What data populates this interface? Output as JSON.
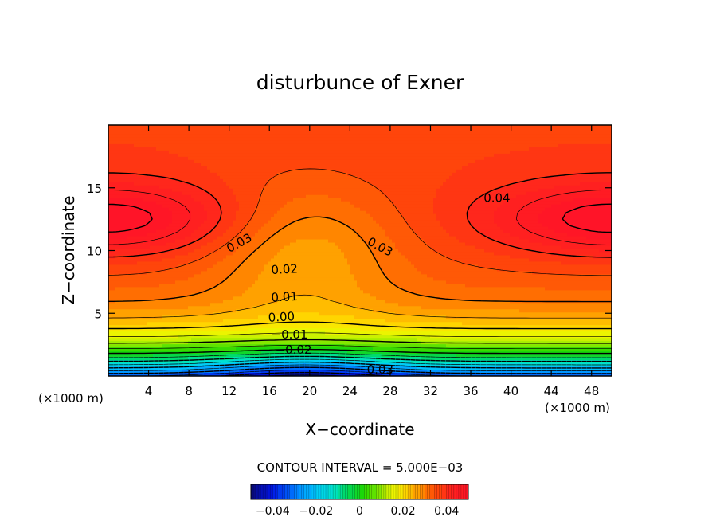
{
  "chart_data": {
    "type": "heatmap",
    "title": "disturbunce of Exner",
    "xlabel": "X−coordinate",
    "ylabel": "Z−coordinate",
    "x_unit_left": "(×1000 m)",
    "x_unit_right": "(×1000 m)",
    "xlim": [
      0,
      50
    ],
    "ylim": [
      0,
      20
    ],
    "xticks": [
      4,
      8,
      12,
      16,
      20,
      24,
      28,
      32,
      36,
      40,
      44,
      48
    ],
    "xtick_labels": [
      "4",
      "8",
      "12",
      "16",
      "20",
      "24",
      "28",
      "32",
      "36",
      "40",
      "44",
      "48"
    ],
    "yticks": [
      5,
      10,
      15
    ],
    "ytick_labels": [
      "5",
      "10",
      "15"
    ],
    "contour_interval_text": "CONTOUR INTERVAL = 5.000E−03",
    "contour_labels": [
      {
        "text": "0.04",
        "x": 38.6,
        "z": 14.2,
        "angle": 0
      },
      {
        "text": "0.03",
        "x": 13.0,
        "z": 10.6,
        "angle": -28
      },
      {
        "text": "0.03",
        "x": 27.0,
        "z": 10.3,
        "angle": 28
      },
      {
        "text": "0.02",
        "x": 17.5,
        "z": 8.5,
        "angle": -3
      },
      {
        "text": "0.01",
        "x": 17.5,
        "z": 6.3,
        "angle": -3
      },
      {
        "text": "0.00",
        "x": 17.2,
        "z": 4.7,
        "angle": -3
      },
      {
        "text": "−0.01",
        "x": 18.0,
        "z": 3.3,
        "angle": 0
      },
      {
        "text": "−0.02",
        "x": 18.4,
        "z": 2.1,
        "angle": 0
      },
      {
        "text": "−0.03",
        "x": 26.5,
        "z": 0.5,
        "angle": 0
      }
    ],
    "colorbar": {
      "range": [
        -0.05,
        0.05
      ],
      "ticks": [
        -0.04,
        -0.02,
        0,
        0.02,
        0.04
      ],
      "tick_labels": [
        "−0.04",
        "−0.02",
        "0",
        "0.02",
        "0.04"
      ]
    },
    "colors": {
      "min": "#0a0a8c",
      "mid_low": "#00c8ff",
      "zero": "#00dc00",
      "mid_high": "#ffff00",
      "high": "#ff3c00",
      "max": "#ff2020"
    },
    "grid": false
  }
}
